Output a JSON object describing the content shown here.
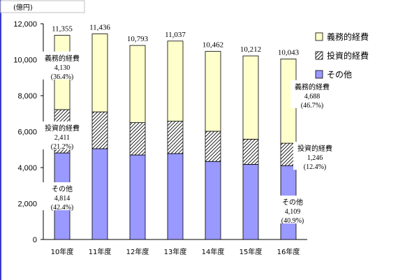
{
  "chart_data": {
    "type": "bar",
    "stacked": true,
    "unit_label": "(億円)",
    "categories": [
      "10年度",
      "11年度",
      "12年度",
      "13年度",
      "14年度",
      "15年度",
      "16年度"
    ],
    "series": [
      {
        "name": "その他",
        "values": [
          4814,
          5050,
          4700,
          4780,
          4340,
          4180,
          4109
        ],
        "color": "#9999ff",
        "pattern": "solid"
      },
      {
        "name": "投資的経費",
        "values": [
          2411,
          2050,
          1800,
          1800,
          1680,
          1400,
          1246
        ],
        "color": "#ffffff",
        "pattern": "hatch"
      },
      {
        "name": "義務的経費",
        "values": [
          4130,
          4336,
          4293,
          4457,
          4442,
          4632,
          4688
        ],
        "color": "#ffffcc",
        "pattern": "solid"
      }
    ],
    "totals": [
      "11,355",
      "11,436",
      "10,793",
      "11,037",
      "10,462",
      "10,212",
      "10,043"
    ],
    "ylim": [
      0,
      12000
    ],
    "yticks": [
      "0",
      "2,000",
      "4,000",
      "6,000",
      "8,000",
      "10,000",
      "12,000"
    ],
    "legend": {
      "placement": "right",
      "order": [
        "義務的経費",
        "投資的経費",
        "その他"
      ]
    },
    "annotations": {
      "bar10": [
        {
          "label": "義務的経費",
          "value": "4,130",
          "pct": "(36.4%)"
        },
        {
          "label": "投資的経費",
          "value": "2,411",
          "pct": "(21.2%)"
        },
        {
          "label": "その他",
          "value": "4,814",
          "pct": "(42.4%)"
        }
      ],
      "bar16": [
        {
          "label": "義務的経費",
          "value": "4,688",
          "pct": "(46.7%)"
        },
        {
          "label": "投資的経費",
          "value": "1,246",
          "pct": "(12.4%)"
        },
        {
          "label": "その他",
          "value": "4,109",
          "pct": "(40.9%)"
        }
      ]
    }
  }
}
